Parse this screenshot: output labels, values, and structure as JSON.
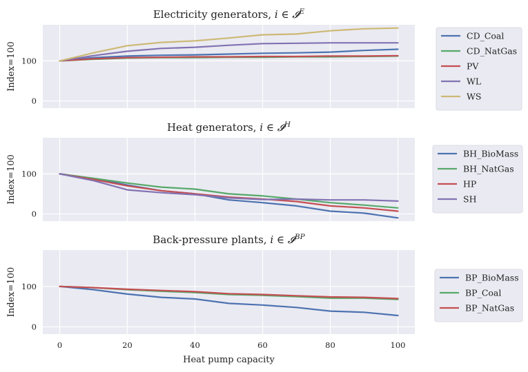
{
  "figure": {
    "xlabel": "Heat pump capacity",
    "background": "#eaeaf2",
    "grid": true,
    "xticks": [
      0,
      20,
      40,
      60,
      80,
      100
    ],
    "xlim": [
      -5,
      105
    ]
  },
  "chart_data": [
    {
      "type": "line",
      "title": "Electricity generators, ",
      "title_math": {
        "base": "i ∈ 𝓘",
        "sup": "E"
      },
      "ylabel": "Index=100",
      "ylim": [
        -18,
        190
      ],
      "yticks": [
        0,
        100
      ],
      "legend_position": "outside-right",
      "x": [
        0,
        10,
        20,
        30,
        40,
        50,
        60,
        70,
        80,
        90,
        100
      ],
      "series": [
        {
          "name": "CD_Coal",
          "color": "#4c72b0",
          "values": [
            100,
            108,
            112,
            114,
            115,
            117,
            119,
            120,
            122,
            126,
            129
          ]
        },
        {
          "name": "CD_NatGas",
          "color": "#55a868",
          "values": [
            100,
            104,
            107,
            108,
            108,
            109,
            109,
            110,
            110,
            111,
            112
          ]
        },
        {
          "name": "PV",
          "color": "#c44e52",
          "values": [
            100,
            105,
            108,
            109,
            110,
            110,
            111,
            111,
            112,
            112,
            113
          ]
        },
        {
          "name": "WL",
          "color": "#8172b2",
          "values": [
            100,
            113,
            124,
            131,
            134,
            139,
            143,
            144,
            145,
            145,
            145
          ]
        },
        {
          "name": "WS",
          "color": "#ccb974",
          "values": [
            100,
            120,
            138,
            146,
            150,
            157,
            165,
            167,
            175,
            180,
            182
          ]
        }
      ]
    },
    {
      "type": "line",
      "title": "Heat generators, ",
      "title_math": {
        "base": "i ∈ 𝓘",
        "sup": "H"
      },
      "ylabel": "Index=100",
      "ylim": [
        -18,
        190
      ],
      "yticks": [
        0,
        100
      ],
      "legend_position": "outside-right",
      "x": [
        0,
        10,
        20,
        30,
        40,
        50,
        60,
        70,
        80,
        90,
        100
      ],
      "series": [
        {
          "name": "BH_BioMass",
          "color": "#4c72b0",
          "values": [
            100,
            88,
            72,
            58,
            50,
            35,
            28,
            20,
            7,
            2,
            -10
          ]
        },
        {
          "name": "BH_NatGas",
          "color": "#55a868",
          "values": [
            100,
            89,
            77,
            67,
            62,
            50,
            45,
            37,
            28,
            22,
            15
          ]
        },
        {
          "name": "HP",
          "color": "#c44e52",
          "values": [
            100,
            86,
            70,
            58,
            50,
            42,
            37,
            31,
            20,
            15,
            7
          ]
        },
        {
          "name": "SH",
          "color": "#8172b2",
          "values": [
            100,
            83,
            60,
            53,
            48,
            40,
            36,
            37,
            35,
            35,
            32
          ]
        }
      ]
    },
    {
      "type": "line",
      "title": "Back-pressure plants, ",
      "title_math": {
        "base": "i ∈ 𝓘",
        "sup": "BP"
      },
      "ylabel": "Index=100",
      "ylim": [
        -18,
        190
      ],
      "yticks": [
        0,
        100
      ],
      "legend_position": "outside-right",
      "x": [
        0,
        10,
        20,
        30,
        40,
        50,
        60,
        70,
        80,
        90,
        100
      ],
      "series": [
        {
          "name": "BP_BioMass",
          "color": "#4c72b0",
          "values": [
            100,
            92,
            81,
            73,
            69,
            58,
            54,
            48,
            39,
            36,
            28
          ]
        },
        {
          "name": "BP_Coal",
          "color": "#55a868",
          "values": [
            100,
            97,
            92,
            88,
            85,
            80,
            78,
            75,
            71,
            71,
            68
          ]
        },
        {
          "name": "BP_NatGas",
          "color": "#c44e52",
          "values": [
            100,
            97,
            93,
            90,
            87,
            82,
            80,
            77,
            74,
            73,
            70
          ]
        }
      ]
    }
  ]
}
